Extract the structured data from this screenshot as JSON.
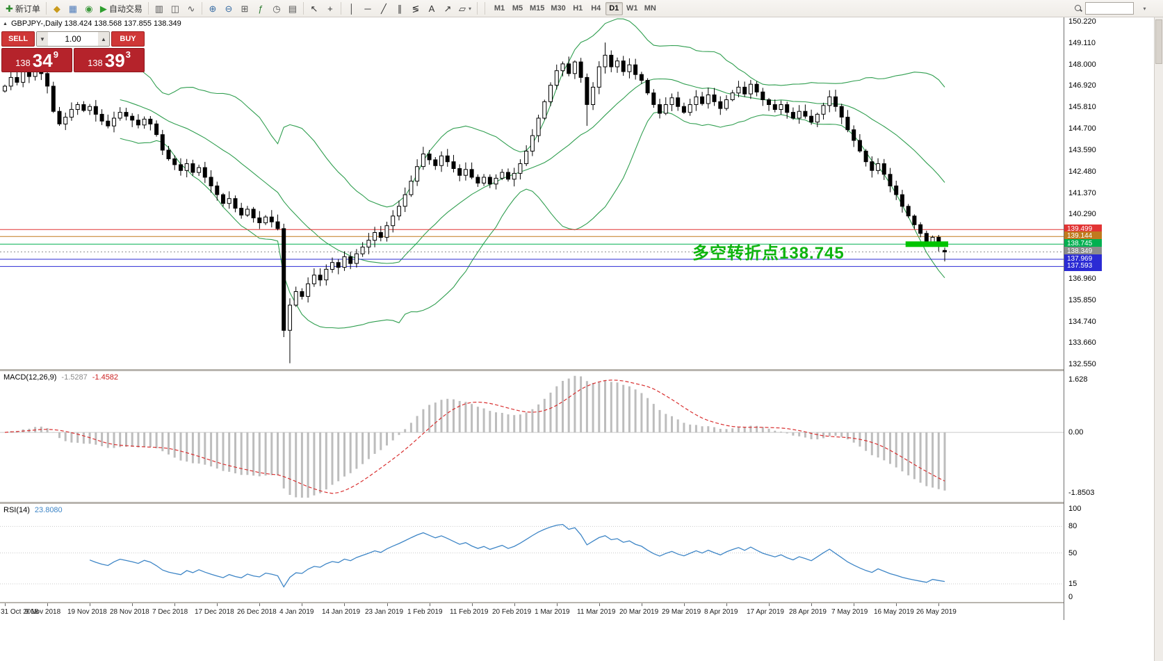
{
  "toolbar": {
    "groups": [
      {
        "type": "items",
        "items": [
          {
            "name": "new-order-button",
            "icon": "new-order-icon",
            "glyph": "✚",
            "color": "#2e8b2e",
            "label": "新订单"
          }
        ]
      },
      {
        "type": "sep"
      },
      {
        "type": "items",
        "items": [
          {
            "name": "market-watch-button",
            "icon": "market-watch-icon",
            "glyph": "◆",
            "color": "#c99a1c"
          },
          {
            "name": "data-window-button",
            "icon": "data-window-icon",
            "glyph": "▦",
            "color": "#4f7cba"
          },
          {
            "name": "navigator-button",
            "icon": "navigator-icon",
            "glyph": "◉",
            "color": "#3f9a3f"
          },
          {
            "name": "autotrading-button",
            "icon": "autotrading-icon",
            "glyph": "▶",
            "color": "#2e9e2e",
            "label": "自动交易"
          }
        ]
      },
      {
        "type": "sep"
      },
      {
        "type": "items",
        "items": [
          {
            "name": "bars-chart-button",
            "icon": "bars-chart-icon",
            "glyph": "▥",
            "color": "#555555"
          },
          {
            "name": "candlestick-chart-button",
            "icon": "candlestick-chart-icon",
            "glyph": "◫",
            "color": "#555555"
          },
          {
            "name": "line-chart-button",
            "icon": "line-chart-icon",
            "glyph": "∿",
            "color": "#555555"
          }
        ]
      },
      {
        "type": "sep"
      },
      {
        "type": "items",
        "items": [
          {
            "name": "zoom-in-button",
            "icon": "zoom-in-icon",
            "glyph": "⊕",
            "color": "#3a6ea5"
          },
          {
            "name": "zoom-out-button",
            "icon": "zoom-out-icon",
            "glyph": "⊖",
            "color": "#3a6ea5"
          },
          {
            "name": "tile-windows-button",
            "icon": "tile-windows-icon",
            "glyph": "⊞",
            "color": "#555555"
          },
          {
            "name": "indicators-button",
            "icon": "indicators-icon",
            "glyph": "ƒ",
            "color": "#2e7d32"
          },
          {
            "name": "periods-button",
            "icon": "periods-icon",
            "glyph": "◷",
            "color": "#555555"
          },
          {
            "name": "templates-button",
            "icon": "templates-icon",
            "glyph": "▤",
            "color": "#555555"
          }
        ]
      },
      {
        "type": "sep"
      },
      {
        "type": "items",
        "items": [
          {
            "name": "cursor-button",
            "icon": "cursor-icon",
            "glyph": "↖",
            "color": "#333333"
          },
          {
            "name": "crosshair-button",
            "icon": "crosshair-icon",
            "glyph": "+",
            "color": "#333333"
          }
        ]
      },
      {
        "type": "sep"
      },
      {
        "type": "items",
        "items": [
          {
            "name": "vertical-line-button",
            "icon": "vertical-line-icon",
            "glyph": "│",
            "color": "#333333"
          },
          {
            "name": "horizontal-line-button",
            "icon": "horizontal-line-icon",
            "glyph": "─",
            "color": "#333333"
          },
          {
            "name": "trendline-button",
            "icon": "trendline-icon",
            "glyph": "╱",
            "color": "#333333"
          },
          {
            "name": "channel-button",
            "icon": "equidistant-channel-icon",
            "glyph": "∥",
            "color": "#333333"
          },
          {
            "name": "fibonacci-button",
            "icon": "fibonacci-icon",
            "glyph": "≶",
            "color": "#333333"
          },
          {
            "name": "text-label-button",
            "icon": "text-icon",
            "glyph": "A",
            "color": "#333333"
          },
          {
            "name": "arrows-button",
            "icon": "arrow-marker-icon",
            "glyph": "↗",
            "color": "#333333"
          },
          {
            "name": "shapes-button",
            "icon": "shapes-icon",
            "glyph": "▱",
            "color": "#333333",
            "caret": true
          }
        ]
      },
      {
        "type": "sep"
      }
    ],
    "timeframes": [
      "M1",
      "M5",
      "M15",
      "M30",
      "H1",
      "H4",
      "D1",
      "W1",
      "MN"
    ],
    "active_timeframe": "D1"
  },
  "chart": {
    "symbol_line": "GBPJPY-,Daily   138.424 138.568 137.855 138.349",
    "annotation": "多空转折点138.745",
    "trade_panel": {
      "sell_label": "SELL",
      "buy_label": "BUY",
      "volume": "1.00",
      "sell_price_prefix": "138",
      "sell_price_big": "34",
      "sell_price_sup": "9",
      "buy_price_prefix": "138",
      "buy_price_big": "39",
      "buy_price_sup": "3"
    },
    "levels": [
      {
        "label": "139.499",
        "price": 139.499,
        "color": "#e23434",
        "style": "solid"
      },
      {
        "label": "139.144",
        "price": 139.144,
        "color": "#c07a1e",
        "style": "solid"
      },
      {
        "label": "138.745",
        "price": 138.745,
        "color": "#00b050",
        "style": "solid"
      },
      {
        "label": "138.349",
        "price": 138.349,
        "color": "#8c8c8c",
        "style": "dotted"
      },
      {
        "label": "137.969",
        "price": 137.969,
        "color": "#2b2bd4",
        "style": "solid"
      },
      {
        "label": "137.593",
        "price": 137.593,
        "color": "#2b2bd4",
        "style": "solid"
      }
    ],
    "y_axis": [
      "150.220",
      "149.110",
      "148.000",
      "146.920",
      "145.810",
      "144.700",
      "143.590",
      "142.480",
      "141.370",
      "140.290",
      "136.960",
      "135.850",
      "134.740",
      "133.660",
      "132.550"
    ]
  },
  "macd": {
    "name": "MACD(12,26,9)",
    "main_value": "-1.5287",
    "signal_value": "-1.4582",
    "axis": [
      {
        "label": "1.628",
        "value": 1.628
      },
      {
        "label": "0.00",
        "value": 0
      },
      {
        "label": "-1.8503",
        "value": -1.8503
      }
    ]
  },
  "rsi": {
    "name": "RSI(14)",
    "value": "23.8080",
    "levels": [
      80,
      50,
      15
    ],
    "axis": [
      {
        "label": "100",
        "value": 100
      },
      {
        "label": "80",
        "value": 80
      },
      {
        "label": "50",
        "value": 50
      },
      {
        "label": "15",
        "value": 15
      },
      {
        "label": "0",
        "value": 0
      }
    ]
  },
  "time_axis": [
    "31 Oct 2018",
    "9 Nov 2018",
    "19 Nov 2018",
    "28 Nov 2018",
    "7 Dec 2018",
    "17 Dec 2018",
    "26 Dec 2018",
    "4 Jan 2019",
    "14 Jan 2019",
    "23 Jan 2019",
    "1 Feb 2019",
    "11 Feb 2019",
    "20 Feb 2019",
    "1 Mar 2019",
    "11 Mar 2019",
    "20 Mar 2019",
    "29 Mar 2019",
    "8 Apr 2019",
    "17 Apr 2019",
    "28 Apr 2019",
    "7 May 2019",
    "16 May 2019",
    "26 May 2019"
  ],
  "chart_data": {
    "type": "candlestick",
    "symbol": "GBPJPY",
    "timeframe": "Daily",
    "last_ohlc": {
      "open": 138.424,
      "high": 138.568,
      "low": 137.855,
      "close": 138.349
    },
    "y_min": 132.3,
    "y_max": 150.45,
    "first_open": 146.65,
    "closes": [
      146.9,
      147.35,
      147.1,
      147.65,
      147.4,
      147.95,
      147.55,
      146.9,
      145.6,
      144.95,
      145.3,
      145.7,
      145.95,
      145.65,
      145.85,
      145.45,
      145.1,
      144.85,
      145.25,
      145.55,
      145.35,
      145.15,
      144.9,
      145.2,
      144.95,
      144.4,
      143.6,
      143.15,
      142.85,
      142.55,
      142.9,
      142.45,
      142.7,
      142.2,
      141.75,
      141.3,
      140.85,
      141.1,
      140.6,
      140.25,
      140.55,
      140.1,
      139.85,
      140.15,
      139.9,
      139.55,
      134.3,
      135.6,
      136.3,
      136.05,
      136.7,
      137.15,
      136.9,
      137.45,
      137.8,
      137.55,
      138.1,
      137.75,
      138.25,
      138.6,
      138.95,
      139.35,
      139.1,
      139.7,
      140.2,
      140.7,
      141.3,
      142.0,
      142.75,
      143.4,
      143.1,
      142.8,
      143.3,
      143.0,
      142.65,
      142.3,
      142.6,
      142.2,
      141.9,
      142.2,
      141.85,
      142.15,
      142.45,
      142.1,
      142.4,
      142.9,
      143.55,
      144.35,
      145.25,
      146.1,
      146.95,
      147.7,
      148.05,
      147.55,
      148.15,
      147.35,
      145.95,
      146.85,
      147.9,
      148.5,
      147.9,
      148.2,
      147.65,
      148.0,
      147.5,
      147.2,
      146.55,
      145.95,
      145.5,
      145.95,
      146.3,
      145.85,
      145.55,
      145.95,
      146.35,
      146.0,
      146.45,
      146.1,
      145.75,
      146.2,
      146.55,
      146.85,
      146.5,
      147.0,
      146.6,
      146.2,
      145.95,
      145.7,
      145.95,
      145.55,
      145.25,
      145.6,
      145.35,
      145.05,
      145.45,
      145.9,
      146.35,
      145.85,
      145.3,
      144.65,
      144.1,
      143.55,
      143.0,
      142.55,
      142.9,
      142.35,
      141.75,
      141.3,
      140.7,
      140.2,
      139.75,
      139.3,
      138.85,
      139.1,
      138.7,
      138.349
    ],
    "key_candles": {
      "46": [
        139.55,
        139.8,
        133.95,
        134.3
      ],
      "47": [
        134.3,
        135.95,
        132.6,
        135.6
      ],
      "96": [
        147.35,
        147.55,
        144.85,
        145.95
      ],
      "99": [
        147.9,
        149.15,
        147.55,
        148.5
      ],
      "155": [
        138.424,
        138.568,
        137.855,
        138.349
      ]
    },
    "bollinger": {
      "period": 20,
      "deviation": 2,
      "color": "#2f9e4f"
    },
    "macd": {
      "fast": 12,
      "slow": 26,
      "signal": 9,
      "values": [
        -1.5287,
        -1.4582
      ]
    },
    "rsi": {
      "period": 14,
      "value": 23.808
    },
    "support_box": {
      "from_index": 149,
      "price": 138.745,
      "color": "#00c400"
    },
    "candle_colors": {
      "bull_fill": "#ffffff",
      "bear_fill": "#000000",
      "outline": "#000000"
    }
  }
}
